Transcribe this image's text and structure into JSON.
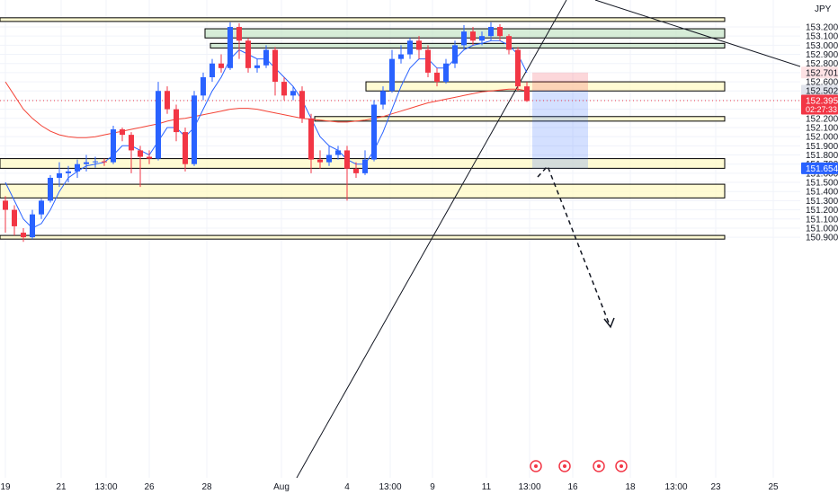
{
  "header": {
    "currency": "JPY"
  },
  "colors": {
    "up": "#2962ff",
    "down": "#f23645",
    "zone_fill": "#fff9c4",
    "zone_green": "#c8e6c9",
    "sma_fast": "#2962ff",
    "sma_slow": "#f44336",
    "price_last": "#f23645",
    "price_target": "#2962ff",
    "price_stop": "#f23645",
    "price_entry": "#787b86",
    "grid": "#f0f3fa"
  },
  "chart_data": {
    "type": "candlestick",
    "ylim": [
      150.88,
      153.26
    ],
    "y_ticks": [
      "153.200",
      "153.100",
      "153.000",
      "152.900",
      "152.800",
      "152.700",
      "152.600",
      "152.500",
      "152.400",
      "152.300",
      "152.200",
      "152.100",
      "152.000",
      "151.900",
      "151.800",
      "151.700",
      "151.600",
      "151.500",
      "151.400",
      "151.300",
      "151.200",
      "151.100",
      "151.000",
      "150.900"
    ],
    "x_ticks": [
      "19",
      "21",
      "13:00",
      "26",
      "28",
      "Aug",
      "4",
      "13:00",
      "9",
      "11",
      "13:00",
      "16",
      "18",
      "13:00",
      "23",
      "25"
    ],
    "candles": [
      [
        151.3,
        151.2,
        151.35,
        150.95
      ],
      [
        151.2,
        151.02,
        151.25,
        150.92
      ],
      [
        150.95,
        150.9,
        151.0,
        150.85
      ],
      [
        150.9,
        151.15,
        151.2,
        150.88
      ],
      [
        151.15,
        151.3,
        151.32,
        151.1
      ],
      [
        151.3,
        151.55,
        151.58,
        151.28
      ],
      [
        151.55,
        151.6,
        151.72,
        151.45
      ],
      [
        151.6,
        151.62,
        151.68,
        151.5
      ],
      [
        151.62,
        151.7,
        151.75,
        151.55
      ],
      [
        151.7,
        151.72,
        151.8,
        151.62
      ],
      [
        151.72,
        151.73,
        151.78,
        151.66
      ],
      [
        151.73,
        151.72,
        151.76,
        151.68
      ],
      [
        151.72,
        152.08,
        152.12,
        151.7
      ],
      [
        152.08,
        152.02,
        152.1,
        151.95
      ],
      [
        152.02,
        151.85,
        152.05,
        151.6
      ],
      [
        151.85,
        151.78,
        151.9,
        151.45
      ],
      [
        151.78,
        151.76,
        151.85,
        151.7
      ],
      [
        151.76,
        152.5,
        152.6,
        151.74
      ],
      [
        152.5,
        152.3,
        152.55,
        152.25
      ],
      [
        152.3,
        152.05,
        152.35,
        151.95
      ],
      [
        152.05,
        151.7,
        152.1,
        151.62
      ],
      [
        151.7,
        152.45,
        152.5,
        151.68
      ],
      [
        152.45,
        152.65,
        152.7,
        152.4
      ],
      [
        152.65,
        152.8,
        152.85,
        152.6
      ],
      [
        152.8,
        152.75,
        152.9,
        152.7
      ],
      [
        152.75,
        153.2,
        153.25,
        152.73
      ],
      [
        153.2,
        153.05,
        153.24,
        152.85
      ],
      [
        153.05,
        152.75,
        153.08,
        152.7
      ],
      [
        152.75,
        152.78,
        152.85,
        152.7
      ],
      [
        152.78,
        152.95,
        153.0,
        152.75
      ],
      [
        152.95,
        152.6,
        152.98,
        152.45
      ],
      [
        152.6,
        152.45,
        152.65,
        152.4
      ],
      [
        152.45,
        152.5,
        152.55,
        152.4
      ],
      [
        152.5,
        152.2,
        152.55,
        152.15
      ],
      [
        152.2,
        151.75,
        152.25,
        151.6
      ],
      [
        151.75,
        151.72,
        151.85,
        151.65
      ],
      [
        151.72,
        151.8,
        151.9,
        151.68
      ],
      [
        151.8,
        151.85,
        151.9,
        151.75
      ],
      [
        151.85,
        151.65,
        151.9,
        151.3
      ],
      [
        151.65,
        151.6,
        151.72,
        151.55
      ],
      [
        151.6,
        151.75,
        151.85,
        151.58
      ],
      [
        151.75,
        152.35,
        152.4,
        151.73
      ],
      [
        152.35,
        152.5,
        152.55,
        152.3
      ],
      [
        152.5,
        152.85,
        152.95,
        152.48
      ],
      [
        152.85,
        152.9,
        153.0,
        152.8
      ],
      [
        152.9,
        153.05,
        153.08,
        152.85
      ],
      [
        153.05,
        152.95,
        153.1,
        152.85
      ],
      [
        152.95,
        152.7,
        153.0,
        152.65
      ],
      [
        152.7,
        152.6,
        152.75,
        152.55
      ],
      [
        152.6,
        152.8,
        152.85,
        152.58
      ],
      [
        152.8,
        153.0,
        153.05,
        152.75
      ],
      [
        153.0,
        153.15,
        153.22,
        152.95
      ],
      [
        153.15,
        153.05,
        153.2,
        153.0
      ],
      [
        153.05,
        153.1,
        153.15,
        153.0
      ],
      [
        153.1,
        153.2,
        153.25,
        153.05
      ],
      [
        153.2,
        153.1,
        153.23,
        153.05
      ],
      [
        153.1,
        152.95,
        153.12,
        152.9
      ],
      [
        152.95,
        152.55,
        152.98,
        152.5
      ],
      [
        152.55,
        152.39,
        152.6,
        152.38
      ]
    ],
    "sma_fast": [
      151.5,
      151.3,
      151.1,
      151.0,
      151.05,
      151.2,
      151.4,
      151.55,
      151.62,
      151.68,
      151.7,
      151.72,
      151.8,
      151.9,
      151.9,
      151.85,
      151.8,
      151.95,
      152.1,
      152.1,
      152.0,
      152.1,
      152.3,
      152.5,
      152.65,
      152.85,
      152.95,
      152.9,
      152.85,
      152.85,
      152.75,
      152.65,
      152.55,
      152.4,
      152.2,
      152.0,
      151.9,
      151.85,
      151.75,
      151.7,
      151.7,
      151.85,
      152.05,
      152.3,
      152.55,
      152.75,
      152.85,
      152.85,
      152.75,
      152.75,
      152.85,
      152.95,
      153.0,
      153.02,
      153.05,
      153.05,
      153.0,
      152.9,
      152.7
    ],
    "sma_slow": [
      152.6,
      152.45,
      152.3,
      152.2,
      152.12,
      152.06,
      152.02,
      152.0,
      151.99,
      151.99,
      152.0,
      152.02,
      152.04,
      152.06,
      152.08,
      152.1,
      152.12,
      152.14,
      152.17,
      152.19,
      152.2,
      152.22,
      152.24,
      152.26,
      152.28,
      152.3,
      152.31,
      152.31,
      152.3,
      152.28,
      152.26,
      152.24,
      152.22,
      152.2,
      152.19,
      152.18,
      152.17,
      152.16,
      152.16,
      152.17,
      152.18,
      152.2,
      152.22,
      152.25,
      152.28,
      152.31,
      152.34,
      152.37,
      152.39,
      152.41,
      152.43,
      152.45,
      152.47,
      152.49,
      152.5,
      152.51,
      152.52,
      152.52,
      152.5
    ],
    "zones": [
      {
        "name": "zone-top",
        "low": 153.26,
        "high": 153.3,
        "color": "yellow"
      },
      {
        "name": "zone-green-upper",
        "low": 153.08,
        "high": 153.18,
        "color": "green"
      },
      {
        "name": "zone-green-lower",
        "low": 152.97,
        "high": 153.02,
        "color": "green"
      },
      {
        "name": "zone-entry",
        "low": 152.5,
        "high": 152.6,
        "color": "yellow"
      },
      {
        "name": "zone-mid",
        "low": 152.17,
        "high": 152.22,
        "color": "yellow"
      },
      {
        "name": "zone-target",
        "low": 151.654,
        "high": 151.76,
        "color": "yellow"
      },
      {
        "name": "zone-low",
        "low": 151.33,
        "high": 151.48,
        "color": "yellow"
      },
      {
        "name": "zone-bottom",
        "low": 150.88,
        "high": 150.92,
        "color": "yellow"
      }
    ],
    "position": {
      "type": "short",
      "entry": 152.502,
      "stop": 152.701,
      "target": 151.654
    },
    "price_labels": [
      {
        "name": "stop-price-label",
        "text": "152.701",
        "value": 152.701,
        "kind": "stop"
      },
      {
        "name": "entry-price-label",
        "text": "152.502",
        "value": 152.502,
        "kind": "entry"
      },
      {
        "name": "last-price-label",
        "text": "152.395",
        "value": 152.395,
        "kind": "last",
        "sub": "02:27:33"
      },
      {
        "name": "target-price-label",
        "text": "151.654",
        "value": 151.654,
        "kind": "target"
      }
    ]
  }
}
